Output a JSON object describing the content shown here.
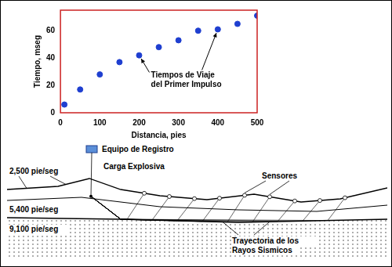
{
  "chart_data": {
    "type": "scatter",
    "x": [
      10,
      50,
      100,
      150,
      200,
      250,
      300,
      350,
      400,
      450,
      500
    ],
    "values": [
      6,
      17,
      28,
      37,
      42,
      48,
      53,
      60,
      61,
      65,
      71
    ],
    "color": "#1f3fd0",
    "marker": "circle",
    "xlabel": "Distancia, pies",
    "ylabel": "Tiempo, mseg",
    "xlim": [
      0,
      500
    ],
    "xticks": [
      0,
      100,
      200,
      300,
      400,
      500
    ],
    "ylim": [
      0,
      75
    ],
    "yticks": [
      0,
      20,
      40,
      60
    ],
    "grid": false,
    "annotation": "Tiempos de Viaje del Primer Impulso"
  },
  "diagram": {
    "layers": [
      "2,500 pie/seg",
      "5,400 pie/seg",
      "9,100 pie/seg"
    ],
    "labels": {
      "recorder": "Equipo de Registro",
      "charge": "Carga Explosiva",
      "sensors": "Sensores",
      "rays": "Trayectoria de los Rayos Sismicos"
    }
  }
}
